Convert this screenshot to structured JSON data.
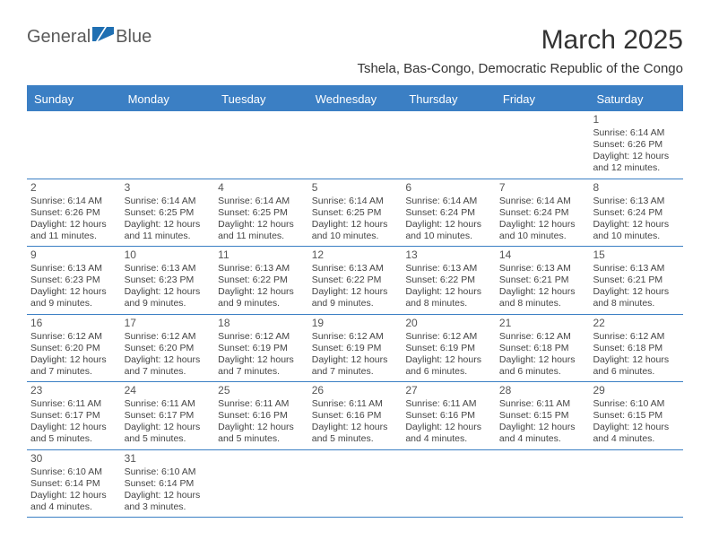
{
  "brand": {
    "part1": "General",
    "part2": "Blue"
  },
  "title": "March 2025",
  "location": "Tshela, Bas-Congo, Democratic Republic of the Congo",
  "header_bg": "#3b7fc4",
  "day_names": [
    "Sunday",
    "Monday",
    "Tuesday",
    "Wednesday",
    "Thursday",
    "Friday",
    "Saturday"
  ],
  "weeks": [
    [
      null,
      null,
      null,
      null,
      null,
      null,
      {
        "n": "1",
        "sunrise": "Sunrise: 6:14 AM",
        "sunset": "Sunset: 6:26 PM",
        "daylight": "Daylight: 12 hours and 12 minutes."
      }
    ],
    [
      {
        "n": "2",
        "sunrise": "Sunrise: 6:14 AM",
        "sunset": "Sunset: 6:26 PM",
        "daylight": "Daylight: 12 hours and 11 minutes."
      },
      {
        "n": "3",
        "sunrise": "Sunrise: 6:14 AM",
        "sunset": "Sunset: 6:25 PM",
        "daylight": "Daylight: 12 hours and 11 minutes."
      },
      {
        "n": "4",
        "sunrise": "Sunrise: 6:14 AM",
        "sunset": "Sunset: 6:25 PM",
        "daylight": "Daylight: 12 hours and 11 minutes."
      },
      {
        "n": "5",
        "sunrise": "Sunrise: 6:14 AM",
        "sunset": "Sunset: 6:25 PM",
        "daylight": "Daylight: 12 hours and 10 minutes."
      },
      {
        "n": "6",
        "sunrise": "Sunrise: 6:14 AM",
        "sunset": "Sunset: 6:24 PM",
        "daylight": "Daylight: 12 hours and 10 minutes."
      },
      {
        "n": "7",
        "sunrise": "Sunrise: 6:14 AM",
        "sunset": "Sunset: 6:24 PM",
        "daylight": "Daylight: 12 hours and 10 minutes."
      },
      {
        "n": "8",
        "sunrise": "Sunrise: 6:13 AM",
        "sunset": "Sunset: 6:24 PM",
        "daylight": "Daylight: 12 hours and 10 minutes."
      }
    ],
    [
      {
        "n": "9",
        "sunrise": "Sunrise: 6:13 AM",
        "sunset": "Sunset: 6:23 PM",
        "daylight": "Daylight: 12 hours and 9 minutes."
      },
      {
        "n": "10",
        "sunrise": "Sunrise: 6:13 AM",
        "sunset": "Sunset: 6:23 PM",
        "daylight": "Daylight: 12 hours and 9 minutes."
      },
      {
        "n": "11",
        "sunrise": "Sunrise: 6:13 AM",
        "sunset": "Sunset: 6:22 PM",
        "daylight": "Daylight: 12 hours and 9 minutes."
      },
      {
        "n": "12",
        "sunrise": "Sunrise: 6:13 AM",
        "sunset": "Sunset: 6:22 PM",
        "daylight": "Daylight: 12 hours and 9 minutes."
      },
      {
        "n": "13",
        "sunrise": "Sunrise: 6:13 AM",
        "sunset": "Sunset: 6:22 PM",
        "daylight": "Daylight: 12 hours and 8 minutes."
      },
      {
        "n": "14",
        "sunrise": "Sunrise: 6:13 AM",
        "sunset": "Sunset: 6:21 PM",
        "daylight": "Daylight: 12 hours and 8 minutes."
      },
      {
        "n": "15",
        "sunrise": "Sunrise: 6:13 AM",
        "sunset": "Sunset: 6:21 PM",
        "daylight": "Daylight: 12 hours and 8 minutes."
      }
    ],
    [
      {
        "n": "16",
        "sunrise": "Sunrise: 6:12 AM",
        "sunset": "Sunset: 6:20 PM",
        "daylight": "Daylight: 12 hours and 7 minutes."
      },
      {
        "n": "17",
        "sunrise": "Sunrise: 6:12 AM",
        "sunset": "Sunset: 6:20 PM",
        "daylight": "Daylight: 12 hours and 7 minutes."
      },
      {
        "n": "18",
        "sunrise": "Sunrise: 6:12 AM",
        "sunset": "Sunset: 6:19 PM",
        "daylight": "Daylight: 12 hours and 7 minutes."
      },
      {
        "n": "19",
        "sunrise": "Sunrise: 6:12 AM",
        "sunset": "Sunset: 6:19 PM",
        "daylight": "Daylight: 12 hours and 7 minutes."
      },
      {
        "n": "20",
        "sunrise": "Sunrise: 6:12 AM",
        "sunset": "Sunset: 6:19 PM",
        "daylight": "Daylight: 12 hours and 6 minutes."
      },
      {
        "n": "21",
        "sunrise": "Sunrise: 6:12 AM",
        "sunset": "Sunset: 6:18 PM",
        "daylight": "Daylight: 12 hours and 6 minutes."
      },
      {
        "n": "22",
        "sunrise": "Sunrise: 6:12 AM",
        "sunset": "Sunset: 6:18 PM",
        "daylight": "Daylight: 12 hours and 6 minutes."
      }
    ],
    [
      {
        "n": "23",
        "sunrise": "Sunrise: 6:11 AM",
        "sunset": "Sunset: 6:17 PM",
        "daylight": "Daylight: 12 hours and 5 minutes."
      },
      {
        "n": "24",
        "sunrise": "Sunrise: 6:11 AM",
        "sunset": "Sunset: 6:17 PM",
        "daylight": "Daylight: 12 hours and 5 minutes."
      },
      {
        "n": "25",
        "sunrise": "Sunrise: 6:11 AM",
        "sunset": "Sunset: 6:16 PM",
        "daylight": "Daylight: 12 hours and 5 minutes."
      },
      {
        "n": "26",
        "sunrise": "Sunrise: 6:11 AM",
        "sunset": "Sunset: 6:16 PM",
        "daylight": "Daylight: 12 hours and 5 minutes."
      },
      {
        "n": "27",
        "sunrise": "Sunrise: 6:11 AM",
        "sunset": "Sunset: 6:16 PM",
        "daylight": "Daylight: 12 hours and 4 minutes."
      },
      {
        "n": "28",
        "sunrise": "Sunrise: 6:11 AM",
        "sunset": "Sunset: 6:15 PM",
        "daylight": "Daylight: 12 hours and 4 minutes."
      },
      {
        "n": "29",
        "sunrise": "Sunrise: 6:10 AM",
        "sunset": "Sunset: 6:15 PM",
        "daylight": "Daylight: 12 hours and 4 minutes."
      }
    ],
    [
      {
        "n": "30",
        "sunrise": "Sunrise: 6:10 AM",
        "sunset": "Sunset: 6:14 PM",
        "daylight": "Daylight: 12 hours and 4 minutes."
      },
      {
        "n": "31",
        "sunrise": "Sunrise: 6:10 AM",
        "sunset": "Sunset: 6:14 PM",
        "daylight": "Daylight: 12 hours and 3 minutes."
      },
      null,
      null,
      null,
      null,
      null
    ]
  ]
}
